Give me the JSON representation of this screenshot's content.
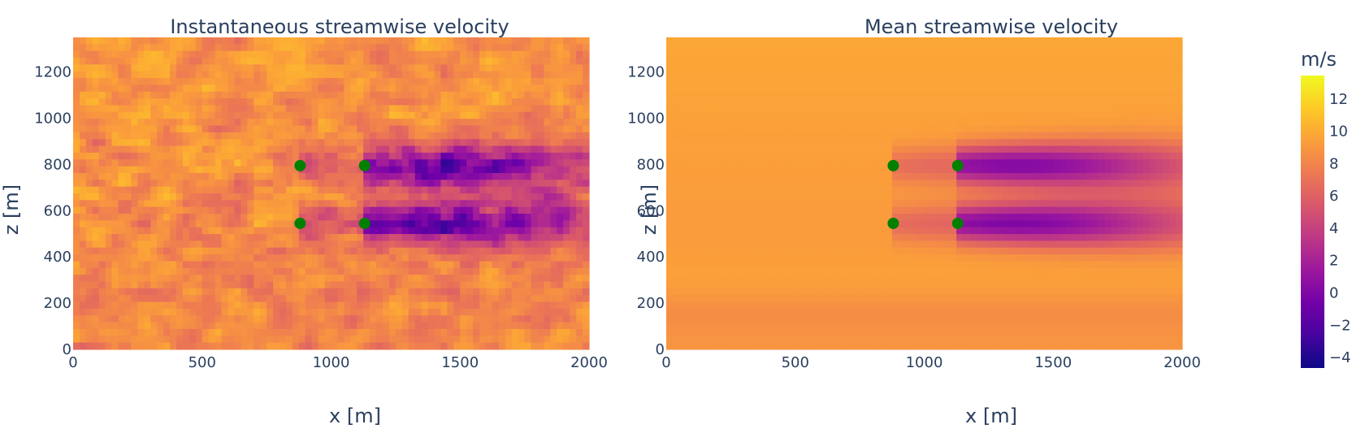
{
  "chart_data": [
    {
      "type": "heatmap",
      "title": "Instantaneous streamwise velocity",
      "xlabel": "x [m]",
      "ylabel": "z [m]",
      "xlim": [
        0,
        2000
      ],
      "ylim": [
        0,
        1350
      ],
      "x_ticks": [
        "0",
        "500",
        "1000",
        "1500",
        "2000"
      ],
      "y_ticks": [
        "0",
        "200",
        "400",
        "600",
        "800",
        "1000",
        "1200"
      ],
      "field": "instantaneous",
      "turbines": [
        {
          "x": 880,
          "z": 795
        },
        {
          "x": 1130,
          "z": 795
        },
        {
          "x": 880,
          "z": 545
        },
        {
          "x": 1130,
          "z": 545
        }
      ],
      "turbine_color": "#008000"
    },
    {
      "type": "heatmap",
      "title": "Mean streamwise velocity",
      "xlabel": "x [m]",
      "ylabel": "z [m]",
      "xlim": [
        0,
        2000
      ],
      "ylim": [
        0,
        1350
      ],
      "x_ticks": [
        "0",
        "500",
        "1000",
        "1500",
        "2000"
      ],
      "y_ticks": [
        "0",
        "200",
        "400",
        "600",
        "800",
        "1000",
        "1200"
      ],
      "field": "mean",
      "turbines": [
        {
          "x": 880,
          "z": 795
        },
        {
          "x": 1130,
          "z": 795
        },
        {
          "x": 880,
          "z": 545
        },
        {
          "x": 1130,
          "z": 545
        }
      ],
      "turbine_color": "#008000"
    }
  ],
  "colorbar": {
    "title": "m/s",
    "range": [
      -4.7,
      13.4
    ],
    "ticks": [
      "−4",
      "−2",
      "0",
      "2",
      "4",
      "6",
      "8",
      "10",
      "12"
    ],
    "tick_values": [
      -4,
      -2,
      0,
      2,
      4,
      6,
      8,
      10,
      12
    ],
    "colorscale": [
      "#0d0887",
      "#46039f",
      "#7201a8",
      "#9c179e",
      "#bd3786",
      "#d8576b",
      "#ed7953",
      "#fb9f3a",
      "#fdca26",
      "#f0f921"
    ]
  }
}
